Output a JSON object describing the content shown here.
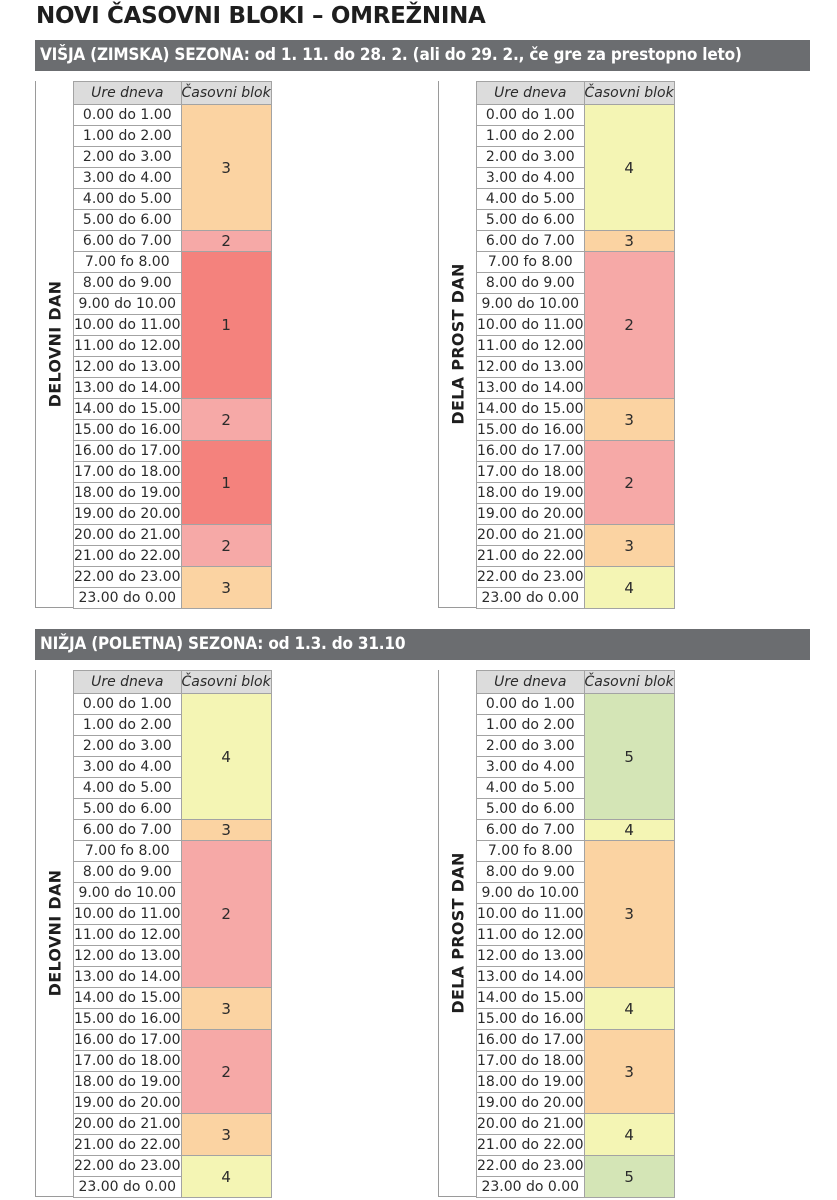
{
  "title": "NOVI ČASOVNI BLOKI – OMREŽNINA",
  "colors": {
    "1": "#f4827d",
    "2": "#f6a9a7",
    "3": "#fbd3a2",
    "4": "#f4f5b4",
    "5": "#d4e5b6",
    "header_bg": "#6b6d70",
    "column_header_bg": "#dcdcdc"
  },
  "column_headers": {
    "hours": "Ure dneva",
    "block": "Časovni blok"
  },
  "hours": [
    "0.00 do 1.00",
    "1.00 do 2.00",
    "2.00 do 3.00",
    "3.00 do 4.00",
    "4.00 do 5.00",
    "5.00 do 6.00",
    "6.00 do 7.00",
    "7.00 fo 8.00",
    "8.00 do 9.00",
    "9.00 do 10.00",
    "10.00 do 11.00",
    "11.00 do 12.00",
    "12.00 do 13.00",
    "13.00 do 14.00",
    "14.00 do 15.00",
    "15.00 do 16.00",
    "16.00 do 17.00",
    "17.00 do 18.00",
    "18.00 do 19.00",
    "19.00 do 20.00",
    "20.00 do 21.00",
    "21.00 do 22.00",
    "22.00 do 23.00",
    "23.00 do 0.00"
  ],
  "seasons": [
    {
      "header": "VIŠJA (ZIMSKA) SEZONA: od 1. 11. do 28. 2. (ali do 29. 2., če gre za prestopno leto)",
      "tables": [
        {
          "label": "DELOVNI DAN",
          "blocks": [
            {
              "value": "3",
              "rows": 6
            },
            {
              "value": "2",
              "rows": 1
            },
            {
              "value": "1",
              "rows": 7
            },
            {
              "value": "2",
              "rows": 2
            },
            {
              "value": "1",
              "rows": 4
            },
            {
              "value": "2",
              "rows": 2
            },
            {
              "value": "3",
              "rows": 2
            }
          ]
        },
        {
          "label": "DELA PROST DAN",
          "blocks": [
            {
              "value": "4",
              "rows": 6
            },
            {
              "value": "3",
              "rows": 1
            },
            {
              "value": "2",
              "rows": 7
            },
            {
              "value": "3",
              "rows": 2
            },
            {
              "value": "2",
              "rows": 4
            },
            {
              "value": "3",
              "rows": 2
            },
            {
              "value": "4",
              "rows": 2
            }
          ]
        }
      ]
    },
    {
      "header": "NIŽJA (POLETNA) SEZONA: od 1.3. do 31.10",
      "tables": [
        {
          "label": "DELOVNI DAN",
          "blocks": [
            {
              "value": "4",
              "rows": 6
            },
            {
              "value": "3",
              "rows": 1
            },
            {
              "value": "2",
              "rows": 7
            },
            {
              "value": "3",
              "rows": 2
            },
            {
              "value": "2",
              "rows": 4
            },
            {
              "value": "3",
              "rows": 2
            },
            {
              "value": "4",
              "rows": 2
            }
          ]
        },
        {
          "label": "DELA PROST DAN",
          "blocks": [
            {
              "value": "5",
              "rows": 6
            },
            {
              "value": "4",
              "rows": 1
            },
            {
              "value": "3",
              "rows": 7
            },
            {
              "value": "4",
              "rows": 2
            },
            {
              "value": "3",
              "rows": 4
            },
            {
              "value": "4",
              "rows": 2
            },
            {
              "value": "5",
              "rows": 2
            }
          ]
        }
      ]
    }
  ]
}
